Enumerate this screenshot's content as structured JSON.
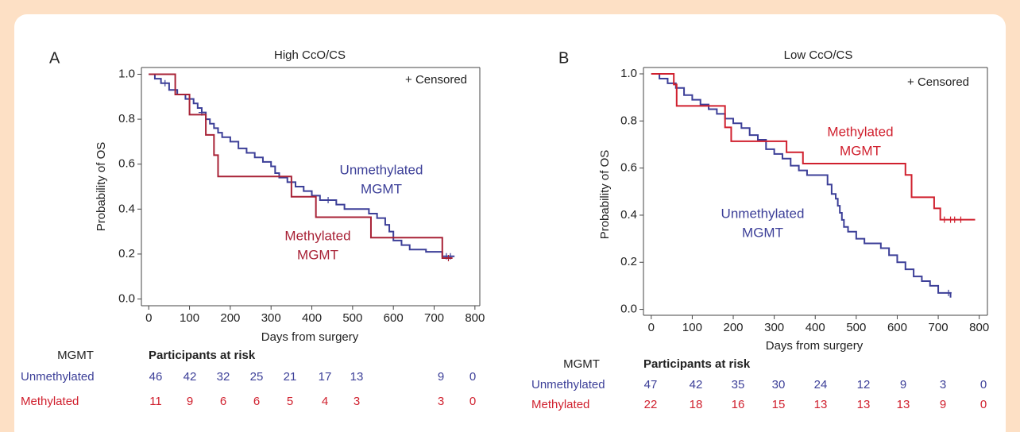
{
  "chart_data": [
    {
      "type": "step",
      "panel": "A",
      "title": "High CcO/CS",
      "x_label": "Days from surgery",
      "y_label": "Probability of OS",
      "legend_note": "+ Censored",
      "xlim": [
        -18,
        812
      ],
      "ylim": [
        -0.03,
        1.03
      ],
      "xticks": [
        0,
        100,
        200,
        300,
        400,
        500,
        600,
        700,
        800
      ],
      "yticks": [
        {
          "value": 0,
          "label": "0.0"
        },
        0.2,
        0.4,
        0.6,
        0.8,
        {
          "value": 1,
          "label": "1.0"
        }
      ],
      "series": [
        {
          "name": "Unmethylated",
          "label_lines": [
            "Unmethylated",
            "MGMT"
          ],
          "color": "#3c3f98",
          "x": [
            0,
            15,
            30,
            50,
            70,
            90,
            110,
            120,
            130,
            140,
            150,
            160,
            170,
            180,
            200,
            220,
            240,
            260,
            280,
            300,
            310,
            320,
            340,
            360,
            380,
            400,
            420,
            460,
            480,
            540,
            560,
            580,
            590,
            600,
            620,
            640,
            680,
            720,
            750
          ],
          "values": [
            1.0,
            0.98,
            0.96,
            0.93,
            0.91,
            0.89,
            0.87,
            0.85,
            0.83,
            0.8,
            0.78,
            0.76,
            0.74,
            0.72,
            0.7,
            0.67,
            0.65,
            0.63,
            0.61,
            0.59,
            0.56,
            0.54,
            0.52,
            0.5,
            0.48,
            0.46,
            0.44,
            0.42,
            0.4,
            0.38,
            0.36,
            0.33,
            0.3,
            0.26,
            0.24,
            0.22,
            0.21,
            0.19,
            0.19
          ],
          "censored": [
            40,
            130,
            440,
            730,
            740
          ]
        },
        {
          "name": "Methylated",
          "label_lines": [
            "Methylated",
            "MGMT"
          ],
          "color": "#a82236",
          "x": [
            0,
            65,
            100,
            140,
            160,
            170,
            350,
            410,
            545,
            720,
            745
          ],
          "values": [
            1.0,
            0.91,
            0.82,
            0.73,
            0.64,
            0.545,
            0.455,
            0.364,
            0.273,
            0.182,
            0.182
          ],
          "censored": [
            735
          ]
        }
      ],
      "risk_table": {
        "header": "MGMT",
        "title": "Participants at risk",
        "rows": [
          {
            "name": "Unmethylated",
            "color": "#3c3f98",
            "values": [
              46,
              42,
              32,
              25,
              21,
              17,
              13,
              9,
              0
            ]
          },
          {
            "name": "Methylated",
            "color": "#d0202e",
            "values": [
              11,
              9,
              6,
              6,
              5,
              4,
              3,
              3,
              0
            ]
          }
        ]
      }
    },
    {
      "type": "step",
      "panel": "B",
      "title": "Low CcO/CS",
      "x_label": "Days from surgery",
      "y_label": "Probability of OS",
      "legend_note": "+ Censored",
      "xlim": [
        -19,
        820
      ],
      "ylim": [
        -0.025,
        1.027
      ],
      "xticks": [
        0,
        100,
        200,
        300,
        400,
        500,
        600,
        700,
        800
      ],
      "yticks": [
        {
          "value": 0,
          "label": "0.0"
        },
        0.2,
        0.4,
        0.6,
        0.8,
        {
          "value": 1,
          "label": "1.0"
        }
      ],
      "series": [
        {
          "name": "Unmethylated",
          "label_lines": [
            "Unmethylated",
            "MGMT"
          ],
          "color": "#3c3f98",
          "x": [
            0,
            20,
            40,
            60,
            80,
            100,
            120,
            140,
            160,
            180,
            200,
            220,
            240,
            260,
            280,
            300,
            320,
            340,
            360,
            380,
            400,
            430,
            440,
            450,
            455,
            460,
            465,
            470,
            480,
            500,
            520,
            560,
            580,
            600,
            620,
            640,
            660,
            680,
            700,
            730
          ],
          "values": [
            1.0,
            0.98,
            0.96,
            0.94,
            0.91,
            0.89,
            0.87,
            0.85,
            0.83,
            0.81,
            0.79,
            0.77,
            0.74,
            0.72,
            0.68,
            0.66,
            0.64,
            0.61,
            0.59,
            0.57,
            0.57,
            0.53,
            0.49,
            0.47,
            0.44,
            0.41,
            0.38,
            0.35,
            0.33,
            0.3,
            0.28,
            0.26,
            0.23,
            0.2,
            0.17,
            0.14,
            0.12,
            0.1,
            0.07,
            0.05
          ],
          "censored": [
            725
          ]
        },
        {
          "name": "Methylated",
          "label_lines": [
            "Methylated",
            "MGMT"
          ],
          "color": "#d0202e",
          "x": [
            0,
            55,
            62,
            180,
            195,
            330,
            370,
            620,
            635,
            690,
            705,
            790
          ],
          "values": [
            1.0,
            0.955,
            0.864,
            0.773,
            0.714,
            0.667,
            0.619,
            0.571,
            0.476,
            0.429,
            0.381,
            0.381
          ],
          "censored": [
            715,
            730,
            740,
            755
          ]
        }
      ],
      "risk_table": {
        "header": "MGMT",
        "title": "Participants at risk",
        "rows": [
          {
            "name": "Unmethylated",
            "color": "#3c3f98",
            "values": [
              47,
              42,
              35,
              30,
              24,
              12,
              9,
              3,
              0
            ]
          },
          {
            "name": "Methylated",
            "color": "#d0202e",
            "values": [
              22,
              18,
              16,
              15,
              13,
              13,
              13,
              9,
              0
            ]
          }
        ]
      }
    }
  ]
}
